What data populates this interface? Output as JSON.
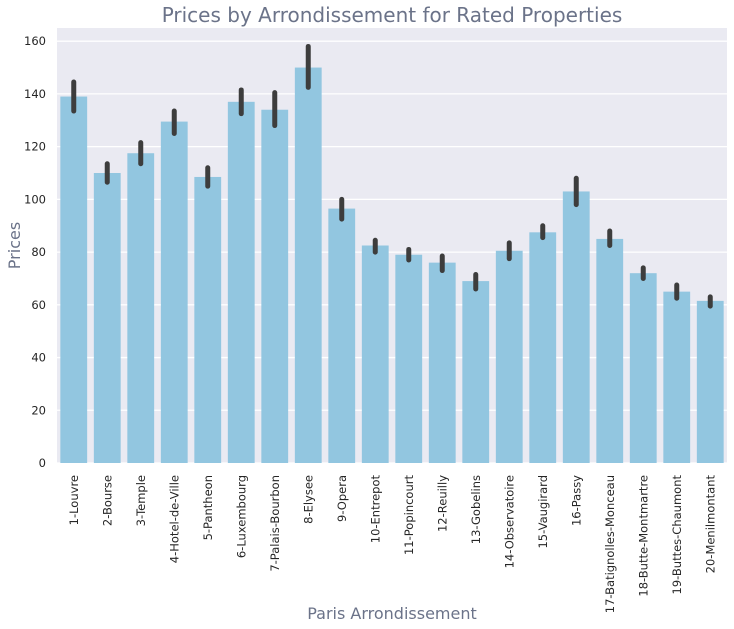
{
  "chart_data": {
    "type": "bar",
    "title": "Prices by Arrondissement for Rated Properties",
    "xlabel": "Paris Arrondissement",
    "ylabel": "Prices",
    "ylim": [
      0,
      165
    ],
    "yticks": [
      0,
      20,
      40,
      60,
      80,
      100,
      120,
      140,
      160
    ],
    "grid": true,
    "categories": [
      "1-Louvre",
      "2-Bourse",
      "3-Temple",
      "4-Hotel-de-Ville",
      "5-Pantheon",
      "6-Luxembourg",
      "7-Palais-Bourbon",
      "8-Elysee",
      "9-Opera",
      "10-Entrepot",
      "11-Popincourt",
      "12-Reuilly",
      "13-Gobelins",
      "14-Observatoire",
      "15-Vaugirard",
      "16-Passy",
      "17-Batignolles-Monceau",
      "18-Butte-Montmartre",
      "19-Buttes-Chaumont",
      "20-Menilmontant"
    ],
    "values": [
      139,
      110,
      117.5,
      129.5,
      108.5,
      137,
      134,
      150,
      96.5,
      82.5,
      79,
      76,
      69,
      80.5,
      87.5,
      103,
      85,
      72,
      65,
      61.5
    ],
    "error_low": [
      133.5,
      106.5,
      113.5,
      125,
      105,
      132.5,
      128,
      142.5,
      92.5,
      80,
      77,
      73,
      66,
      77.5,
      85.5,
      98,
      82.5,
      70,
      62.5,
      59.5
    ],
    "error_high": [
      144.5,
      113.5,
      121.5,
      133.5,
      112,
      141.5,
      140.5,
      158,
      100,
      84.5,
      81,
      78.5,
      71.5,
      83.5,
      90,
      108,
      88,
      74,
      67.5,
      63
    ],
    "colors": {
      "bar": "#92c6e0",
      "error_bar": "#3d3d3d",
      "background": "#eaeaf2",
      "grid": "#ffffff",
      "title": "#6b7389"
    }
  }
}
